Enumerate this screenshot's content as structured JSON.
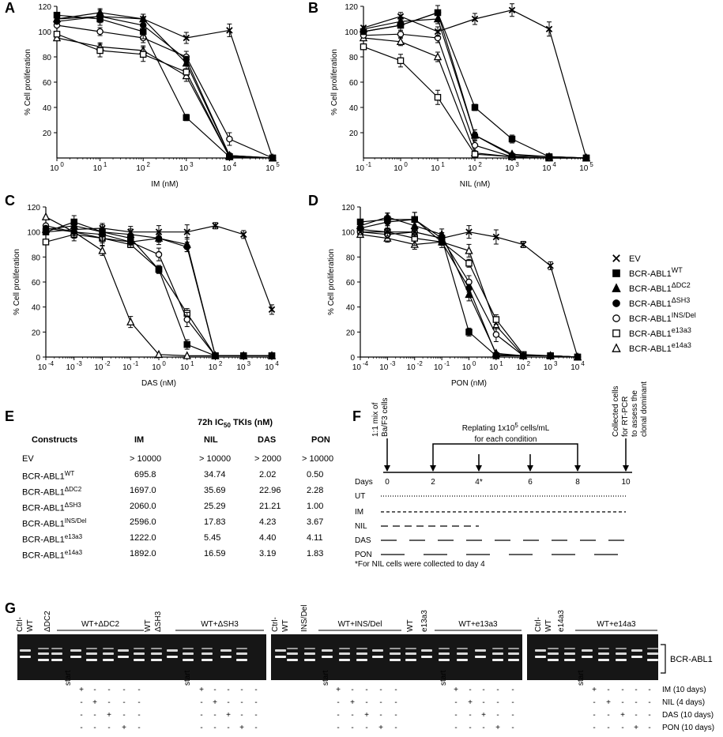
{
  "panels": {
    "A": "A",
    "B": "B",
    "C": "C",
    "D": "D",
    "E": "E",
    "F": "F",
    "G": "G"
  },
  "chart_data": [
    {
      "type": "line",
      "panel": "A",
      "xlabel": "IM (nM)",
      "ylabel": "% Cell proliferation",
      "xscale": "log",
      "xlim": [
        1,
        100000
      ],
      "ylim": [
        0,
        120
      ],
      "x_ticks": [
        "10 0",
        "10 1",
        "10 2",
        "10 3",
        "10 4",
        "10 5"
      ],
      "y_ticks": [
        "20",
        "40",
        "60",
        "80",
        "100",
        "120"
      ],
      "series": [
        {
          "name": "EV",
          "marker": "x",
          "x": [
            1,
            10,
            100,
            1000,
            10000,
            100000
          ],
          "y": [
            110,
            112,
            110,
            95,
            101,
            0
          ]
        },
        {
          "name": "BCR-ABL1 WT",
          "marker": "square-filled",
          "x": [
            1,
            10,
            100,
            1000,
            10000,
            100000
          ],
          "y": [
            113,
            110,
            100,
            32,
            1,
            0
          ]
        },
        {
          "name": "BCR-ABL1 ΔDC2",
          "marker": "triangle-filled",
          "x": [
            1,
            10,
            100,
            1000,
            10000,
            100000
          ],
          "y": [
            110,
            115,
            110,
            75,
            2,
            0
          ]
        },
        {
          "name": "BCR-ABL1 ΔSH3",
          "marker": "circle-filled",
          "x": [
            1,
            10,
            100,
            1000,
            10000,
            100000
          ],
          "y": [
            108,
            112,
            105,
            78,
            2,
            0
          ]
        },
        {
          "name": "BCR-ABL1 INS/Del",
          "marker": "circle-open",
          "x": [
            1,
            10,
            100,
            1000,
            10000,
            100000
          ],
          "y": [
            105,
            100,
            95,
            80,
            15,
            0
          ]
        },
        {
          "name": "BCR-ABL1 e13a3",
          "marker": "square-open",
          "x": [
            1,
            10,
            100,
            1000,
            10000,
            100000
          ],
          "y": [
            98,
            85,
            82,
            68,
            1,
            0
          ]
        },
        {
          "name": "BCR-ABL1 e14a3",
          "marker": "triangle-open",
          "x": [
            1,
            10,
            100,
            1000,
            10000,
            100000
          ],
          "y": [
            95,
            88,
            85,
            65,
            1,
            0
          ]
        }
      ]
    },
    {
      "type": "line",
      "panel": "B",
      "xlabel": "NIL (nM)",
      "ylabel": "% Cell proliferation",
      "xscale": "log",
      "xlim": [
        0.1,
        100000
      ],
      "ylim": [
        0,
        120
      ],
      "x_ticks": [
        "10 -1",
        "10 0",
        "10 1",
        "10 2",
        "10 3",
        "10 4",
        "10 5"
      ],
      "y_ticks": [
        "20",
        "40",
        "60",
        "80",
        "100",
        "120"
      ],
      "series": [
        {
          "name": "EV",
          "marker": "x",
          "x": [
            0.1,
            1,
            10,
            100,
            1000,
            10000,
            100000
          ],
          "y": [
            103,
            112,
            100,
            110,
            117,
            102,
            0
          ]
        },
        {
          "name": "BCR-ABL1 WT",
          "marker": "square-filled",
          "x": [
            0.1,
            1,
            10,
            100,
            1000,
            10000,
            100000
          ],
          "y": [
            100,
            105,
            115,
            40,
            15,
            1,
            0
          ]
        },
        {
          "name": "BCR-ABL1 ΔDC2",
          "marker": "triangle-filled",
          "x": [
            0.1,
            1,
            10,
            100,
            1000,
            10000,
            100000
          ],
          "y": [
            102,
            108,
            110,
            18,
            3,
            1,
            0
          ]
        },
        {
          "name": "BCR-ABL1 ΔSH3",
          "marker": "circle-filled",
          "x": [
            0.1,
            1,
            10,
            100,
            1000,
            10000,
            100000
          ],
          "y": [
            100,
            105,
            115,
            18,
            2,
            1,
            0
          ]
        },
        {
          "name": "BCR-ABL1 INS/Del",
          "marker": "circle-open",
          "x": [
            0.1,
            1,
            10,
            100,
            1000,
            10000,
            100000
          ],
          "y": [
            97,
            98,
            95,
            10,
            1,
            0,
            0
          ]
        },
        {
          "name": "BCR-ABL1 e13a3",
          "marker": "square-open",
          "x": [
            0.1,
            1,
            10,
            100,
            1000,
            10000,
            100000
          ],
          "y": [
            88,
            77,
            48,
            3,
            1,
            0,
            0
          ]
        },
        {
          "name": "BCR-ABL1 e14a3",
          "marker": "triangle-open",
          "x": [
            0.1,
            1,
            10,
            100,
            1000,
            10000,
            100000
          ],
          "y": [
            95,
            92,
            80,
            4,
            1,
            0,
            0
          ]
        }
      ]
    },
    {
      "type": "line",
      "panel": "C",
      "xlabel": "DAS (nM)",
      "ylabel": "% Cell proliferation",
      "xscale": "log",
      "xlim": [
        0.0001,
        10000
      ],
      "ylim": [
        0,
        120
      ],
      "x_ticks": [
        "10 -4",
        "10 -3",
        "10 -2",
        "10 -1",
        "10 0",
        "10 1",
        "10 2",
        "10 3",
        "10 4"
      ],
      "y_ticks": [
        "0",
        "20",
        "40",
        "60",
        "80",
        "100",
        "120"
      ],
      "series": [
        {
          "name": "EV",
          "marker": "x",
          "x": [
            0.0001,
            0.001,
            0.01,
            0.1,
            1,
            10,
            100,
            1000,
            10000
          ],
          "y": [
            100,
            102,
            103,
            100,
            100,
            100,
            105,
            98,
            38
          ]
        },
        {
          "name": "BCR-ABL1 WT",
          "marker": "square-filled",
          "x": [
            0.0001,
            0.001,
            0.01,
            0.1,
            1,
            10,
            100,
            1000,
            10000
          ],
          "y": [
            100,
            108,
            100,
            95,
            70,
            10,
            1,
            1,
            1
          ]
        },
        {
          "name": "BCR-ABL1 ΔDC2",
          "marker": "triangle-filled",
          "x": [
            0.0001,
            0.001,
            0.01,
            0.1,
            1,
            10,
            100,
            1000,
            10000
          ],
          "y": [
            102,
            105,
            100,
            98,
            95,
            90,
            1,
            1,
            1
          ]
        },
        {
          "name": "BCR-ABL1 ΔSH3",
          "marker": "circle-filled",
          "x": [
            0.0001,
            0.001,
            0.01,
            0.1,
            1,
            10,
            100,
            1000,
            10000
          ],
          "y": [
            103,
            100,
            98,
            92,
            95,
            88,
            1,
            1,
            1
          ]
        },
        {
          "name": "BCR-ABL1 INS/Del",
          "marker": "circle-open",
          "x": [
            0.0001,
            0.001,
            0.01,
            0.1,
            1,
            10,
            100,
            1000,
            10000
          ],
          "y": [
            105,
            100,
            95,
            92,
            82,
            30,
            1,
            1,
            1
          ]
        },
        {
          "name": "BCR-ABL1 e13a3",
          "marker": "square-open",
          "x": [
            0.0001,
            0.001,
            0.01,
            0.1,
            1,
            10,
            100,
            1000,
            10000
          ],
          "y": [
            92,
            98,
            95,
            90,
            70,
            35,
            1,
            1,
            1
          ]
        },
        {
          "name": "BCR-ABL1 e14a3",
          "marker": "triangle-open",
          "x": [
            0.0001,
            0.001,
            0.01,
            0.1,
            1,
            10,
            100,
            1000,
            10000
          ],
          "y": [
            112,
            100,
            85,
            28,
            2,
            1,
            1,
            1,
            1
          ]
        }
      ]
    },
    {
      "type": "line",
      "panel": "D",
      "xlabel": "PON (nM)",
      "ylabel": "% Cell proliferation",
      "xscale": "log",
      "xlim": [
        0.0001,
        10000
      ],
      "ylim": [
        0,
        120
      ],
      "x_ticks": [
        "10 -4",
        "10 -3",
        "10 -2",
        "10 -1",
        "10 0",
        "10 1",
        "10 2",
        "10 3",
        "10 4"
      ],
      "y_ticks": [
        "0",
        "20",
        "40",
        "60",
        "80",
        "100",
        "120"
      ],
      "series": [
        {
          "name": "EV",
          "marker": "x",
          "x": [
            0.0001,
            0.001,
            0.01,
            0.1,
            1,
            10,
            100,
            1000,
            10000
          ],
          "y": [
            100,
            100,
            100,
            95,
            100,
            96,
            90,
            73,
            0
          ]
        },
        {
          "name": "BCR-ABL1 WT",
          "marker": "square-filled",
          "x": [
            0.0001,
            0.001,
            0.01,
            0.1,
            1,
            10,
            100,
            1000,
            10000
          ],
          "y": [
            108,
            110,
            110,
            95,
            20,
            1,
            1,
            1,
            0
          ]
        },
        {
          "name": "BCR-ABL1 ΔDC2",
          "marker": "triangle-filled",
          "x": [
            0.0001,
            0.001,
            0.01,
            0.1,
            1,
            10,
            100,
            1000,
            10000
          ],
          "y": [
            105,
            112,
            105,
            98,
            50,
            3,
            1,
            1,
            0
          ]
        },
        {
          "name": "BCR-ABL1 ΔSH3",
          "marker": "circle-filled",
          "x": [
            0.0001,
            0.001,
            0.01,
            0.1,
            1,
            10,
            100,
            1000,
            10000
          ],
          "y": [
            103,
            108,
            110,
            92,
            55,
            2,
            1,
            1,
            0
          ]
        },
        {
          "name": "BCR-ABL1 INS/Del",
          "marker": "circle-open",
          "x": [
            0.0001,
            0.001,
            0.01,
            0.1,
            1,
            10,
            100,
            1000,
            10000
          ],
          "y": [
            100,
            98,
            100,
            95,
            60,
            18,
            1,
            1,
            0
          ]
        },
        {
          "name": "BCR-ABL1 e13a3",
          "marker": "square-open",
          "x": [
            0.0001,
            0.001,
            0.01,
            0.1,
            1,
            10,
            100,
            1000,
            10000
          ],
          "y": [
            102,
            100,
            95,
            92,
            75,
            30,
            2,
            1,
            0
          ]
        },
        {
          "name": "BCR-ABL1 e14a3",
          "marker": "triangle-open",
          "x": [
            0.0001,
            0.001,
            0.01,
            0.1,
            1,
            10,
            100,
            1000,
            10000
          ],
          "y": [
            98,
            95,
            90,
            92,
            85,
            25,
            1,
            1,
            0
          ]
        }
      ]
    }
  ],
  "legend": [
    {
      "marker": "x",
      "base": "EV",
      "sup": ""
    },
    {
      "marker": "square-filled",
      "base": "BCR-ABL1",
      "sup": "WT"
    },
    {
      "marker": "triangle-filled",
      "base": "BCR-ABL1",
      "sup": "ΔDC2"
    },
    {
      "marker": "circle-filled",
      "base": "BCR-ABL1",
      "sup": "ΔSH3"
    },
    {
      "marker": "circle-open",
      "base": "BCR-ABL1",
      "sup": "INS/Del"
    },
    {
      "marker": "square-open",
      "base": "BCR-ABL1",
      "sup": "e13a3"
    },
    {
      "marker": "triangle-open",
      "base": "BCR-ABL1",
      "sup": "e14a3"
    }
  ],
  "table": {
    "title_pre": "72h IC",
    "title_sub": "50",
    "title_post": " TKIs (nM)",
    "headers": [
      "Constructs",
      "IM",
      "NIL",
      "DAS",
      "PON"
    ],
    "rows": [
      {
        "base": "EV",
        "sup": "",
        "values": [
          "> 10000",
          "> 10000",
          "> 2000",
          "> 10000"
        ]
      },
      {
        "base": "BCR-ABL1",
        "sup": "WT",
        "values": [
          "695.8",
          "34.74",
          "2.02",
          "0.50"
        ]
      },
      {
        "base": "BCR-ABL1",
        "sup": "ΔDC2",
        "values": [
          "1697.0",
          "35.69",
          "22.96",
          "2.28"
        ]
      },
      {
        "base": "BCR-ABL1",
        "sup": "ΔSH3",
        "values": [
          "2060.0",
          "25.29",
          "21.21",
          "1.00"
        ]
      },
      {
        "base": "BCR-ABL1",
        "sup": "INS/Del",
        "values": [
          "2596.0",
          "17.83",
          "4.23",
          "3.67"
        ]
      },
      {
        "base": "BCR-ABL1",
        "sup": "e13a3",
        "values": [
          "1222.0",
          "5.45",
          "4.40",
          "4.11"
        ]
      },
      {
        "base": "BCR-ABL1",
        "sup": "e14a3",
        "values": [
          "1892.0",
          "16.59",
          "3.19",
          "1.83"
        ]
      }
    ]
  },
  "schematic": {
    "mix_lines": [
      "1:1 mix of",
      "Ba/F3 cells"
    ],
    "replating_lines": [
      "Replating 1x10",
      "for each condition"
    ],
    "replating_sup": "5",
    "replating_unit": " cells/mL",
    "collected_lines": [
      "Collected cells",
      "for RT-PCR",
      "to assess the",
      "clonal dominant"
    ],
    "days_label": "Days",
    "days": [
      "0",
      "2",
      "4*",
      "6",
      "8",
      "10"
    ],
    "conditions": [
      "UT",
      "IM",
      "NIL",
      "DAS",
      "PON"
    ],
    "footnote": "*For NIL cells were collected to day 4"
  },
  "gel": {
    "panel1_labels": [
      "Ctrl-",
      "WT",
      "ΔDC2",
      "WT",
      "ΔSH3"
    ],
    "panel1_groups": [
      "WT+ΔDC2",
      "WT+ΔSH3"
    ],
    "panel2_labels": [
      "Ctrl-",
      "WT",
      "INS/Del",
      "WT",
      "e13a3"
    ],
    "panel2_groups": [
      "WT+INS/Del",
      "WT+e13a3"
    ],
    "panel3_labels": [
      "Ctrl-",
      "WT",
      "e14a3"
    ],
    "panel3_groups": [
      "WT+e14a3"
    ],
    "band_label": "BCR-ABL1",
    "start_label": "start",
    "minus": "-",
    "plus": "+",
    "treatments": [
      "IM (10 days)",
      "NIL (4 days)",
      "DAS (10 days)",
      "PON (10 days)"
    ]
  }
}
